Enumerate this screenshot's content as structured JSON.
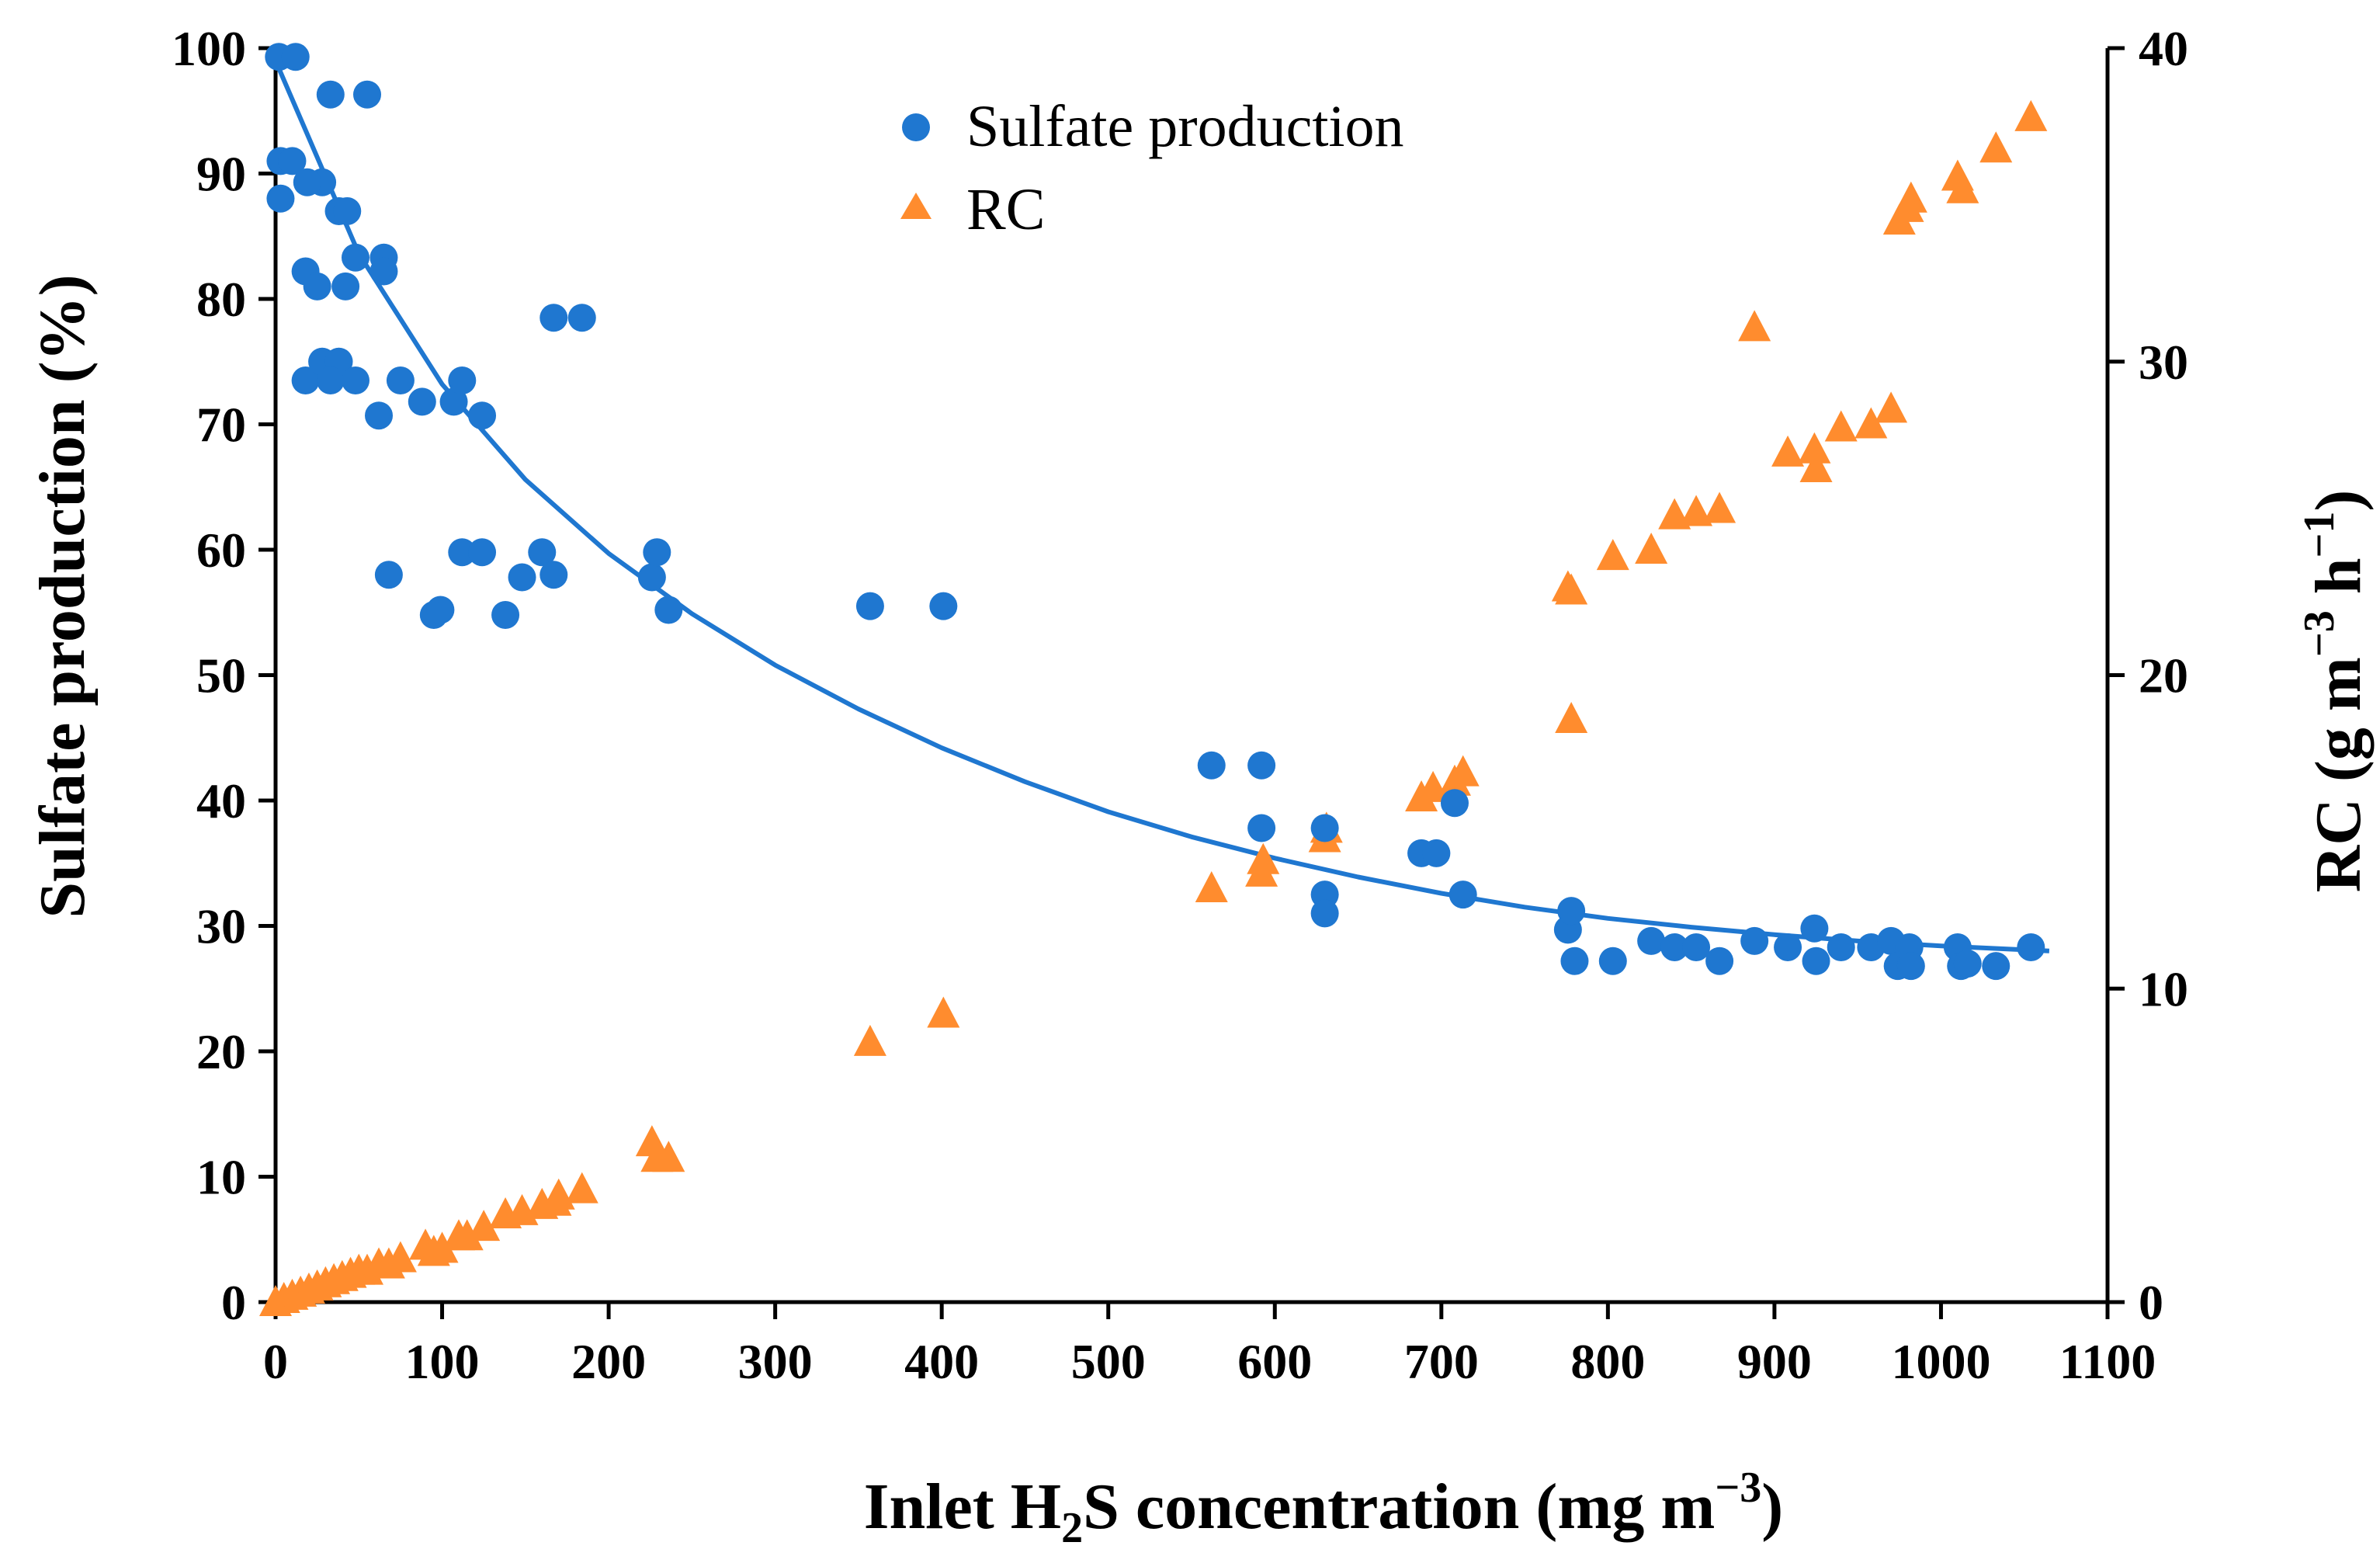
{
  "chart_data": {
    "type": "scatter",
    "title": "",
    "xlabel": {
      "prefix": "Inlet H",
      "sub": "2",
      "suffix": "S concentration (mg m",
      "sup": "−3",
      "end": ")"
    },
    "ylabel": "Sulfate production (%)",
    "y2label": {
      "prefix": "RC (g m",
      "sup1": "−3",
      "mid": " h",
      "sup2": "−1",
      "end": ")"
    },
    "xlim": [
      0,
      1100
    ],
    "ylim": [
      0,
      100
    ],
    "y2lim": [
      0,
      40
    ],
    "x_ticks": [
      "0",
      "100",
      "200",
      "300",
      "400",
      "500",
      "600",
      "700",
      "800",
      "900",
      "1000",
      "1100"
    ],
    "y_ticks": [
      "0",
      "10",
      "20",
      "30",
      "40",
      "50",
      "60",
      "70",
      "80",
      "90",
      "100"
    ],
    "y2_ticks": [
      "0",
      "10",
      "20",
      "30",
      "40"
    ],
    "legend_position": "top-center",
    "colors": {
      "sulfate": "#1f77d0",
      "rc": "#ff8c2e",
      "axis": "#000000"
    },
    "series": [
      {
        "name": "Sulfate production",
        "axis": "left",
        "marker": "circle",
        "points": [
          [
            2,
            99.3
          ],
          [
            12,
            99.3
          ],
          [
            3,
            91
          ],
          [
            10,
            91
          ],
          [
            3,
            88
          ],
          [
            33,
            96.3
          ],
          [
            55,
            96.3
          ],
          [
            28,
            89.3
          ],
          [
            19,
            89.3
          ],
          [
            38,
            87
          ],
          [
            43,
            87
          ],
          [
            18,
            82.2
          ],
          [
            42,
            81
          ],
          [
            48,
            83.3
          ],
          [
            65,
            83.3
          ],
          [
            65,
            82.2
          ],
          [
            25,
            81
          ],
          [
            18,
            73.5
          ],
          [
            28,
            75
          ],
          [
            38,
            75
          ],
          [
            33,
            73.5
          ],
          [
            48,
            73.5
          ],
          [
            75,
            73.5
          ],
          [
            62,
            70.7
          ],
          [
            88,
            71.8
          ],
          [
            107,
            71.8
          ],
          [
            112,
            73.5
          ],
          [
            124,
            70.7
          ],
          [
            167,
            78.5
          ],
          [
            184,
            78.5
          ],
          [
            68,
            58
          ],
          [
            95,
            54.8
          ],
          [
            99,
            55.2
          ],
          [
            112,
            59.8
          ],
          [
            124,
            59.8
          ],
          [
            138,
            54.8
          ],
          [
            148,
            57.8
          ],
          [
            160,
            59.8
          ],
          [
            167,
            58
          ],
          [
            226,
            57.8
          ],
          [
            229,
            59.8
          ],
          [
            236,
            55.2
          ],
          [
            357,
            55.5
          ],
          [
            401,
            55.5
          ],
          [
            562,
            42.8
          ],
          [
            592,
            42.8
          ],
          [
            592,
            37.8
          ],
          [
            630,
            37.8
          ],
          [
            630,
            32.5
          ],
          [
            630,
            31
          ],
          [
            688,
            35.8
          ],
          [
            697,
            35.8
          ],
          [
            708,
            39.8
          ],
          [
            713,
            32.5
          ],
          [
            776,
            29.7
          ],
          [
            778,
            31.2
          ],
          [
            780,
            27.2
          ],
          [
            803,
            27.2
          ],
          [
            826,
            28.8
          ],
          [
            840,
            28.3
          ],
          [
            853,
            28.3
          ],
          [
            867,
            27.2
          ],
          [
            888,
            28.8
          ],
          [
            908,
            28.3
          ],
          [
            924,
            29.8
          ],
          [
            925,
            27.2
          ],
          [
            940,
            28.3
          ],
          [
            958,
            28.3
          ],
          [
            970,
            28.8
          ],
          [
            974,
            26.8
          ],
          [
            981,
            28.3
          ],
          [
            982,
            26.8
          ],
          [
            1010,
            28.3
          ],
          [
            1012,
            26.8
          ],
          [
            1016,
            27
          ],
          [
            1033,
            26.8
          ],
          [
            1054,
            28.3
          ]
        ],
        "trendline": [
          [
            0,
            99
          ],
          [
            50,
            83.6
          ],
          [
            100,
            73.2
          ],
          [
            150,
            65.6
          ],
          [
            200,
            59.7
          ],
          [
            250,
            54.9
          ],
          [
            300,
            50.8
          ],
          [
            350,
            47.3
          ],
          [
            400,
            44.2
          ],
          [
            450,
            41.5
          ],
          [
            500,
            39.1
          ],
          [
            550,
            37.1
          ],
          [
            600,
            35.4
          ],
          [
            650,
            33.9
          ],
          [
            700,
            32.6
          ],
          [
            750,
            31.5
          ],
          [
            800,
            30.6
          ],
          [
            850,
            29.9
          ],
          [
            900,
            29.3
          ],
          [
            950,
            28.8
          ],
          [
            1000,
            28.4
          ],
          [
            1065,
            28
          ]
        ]
      },
      {
        "name": "RC",
        "axis": "right",
        "marker": "triangle",
        "points": [
          [
            0,
            0
          ],
          [
            5,
            0.1
          ],
          [
            10,
            0.2
          ],
          [
            15,
            0.3
          ],
          [
            20,
            0.4
          ],
          [
            25,
            0.5
          ],
          [
            30,
            0.6
          ],
          [
            35,
            0.7
          ],
          [
            40,
            0.8
          ],
          [
            45,
            0.9
          ],
          [
            50,
            1.0
          ],
          [
            55,
            1.0
          ],
          [
            62,
            1.2
          ],
          [
            68,
            1.2
          ],
          [
            75,
            1.4
          ],
          [
            90,
            1.8
          ],
          [
            95,
            1.6
          ],
          [
            100,
            1.7
          ],
          [
            110,
            2.1
          ],
          [
            115,
            2.1
          ],
          [
            125,
            2.4
          ],
          [
            138,
            2.8
          ],
          [
            148,
            2.9
          ],
          [
            160,
            3.1
          ],
          [
            168,
            3.2
          ],
          [
            170,
            3.4
          ],
          [
            184,
            3.6
          ],
          [
            226,
            5.1
          ],
          [
            229,
            4.6
          ],
          [
            236,
            4.6
          ],
          [
            357,
            8.3
          ],
          [
            401,
            9.2
          ],
          [
            562,
            13.2
          ],
          [
            592,
            13.7
          ],
          [
            593,
            14.1
          ],
          [
            630,
            14.8
          ],
          [
            631,
            15.1
          ],
          [
            688,
            16.1
          ],
          [
            695,
            16.4
          ],
          [
            708,
            16.6
          ],
          [
            713,
            16.9
          ],
          [
            776,
            22.8
          ],
          [
            778,
            22.7
          ],
          [
            778,
            18.6
          ],
          [
            803,
            23.8
          ],
          [
            826,
            24
          ],
          [
            840,
            25.1
          ],
          [
            853,
            25.2
          ],
          [
            867,
            25.3
          ],
          [
            888,
            31.1
          ],
          [
            908,
            27.1
          ],
          [
            924,
            27.2
          ],
          [
            925,
            26.6
          ],
          [
            940,
            27.9
          ],
          [
            958,
            28
          ],
          [
            970,
            28.5
          ],
          [
            975,
            34.5
          ],
          [
            980,
            34.9
          ],
          [
            982,
            35.2
          ],
          [
            1010,
            35.9
          ],
          [
            1013,
            35.5
          ],
          [
            1033,
            36.8
          ],
          [
            1054,
            37.8
          ]
        ]
      }
    ]
  }
}
